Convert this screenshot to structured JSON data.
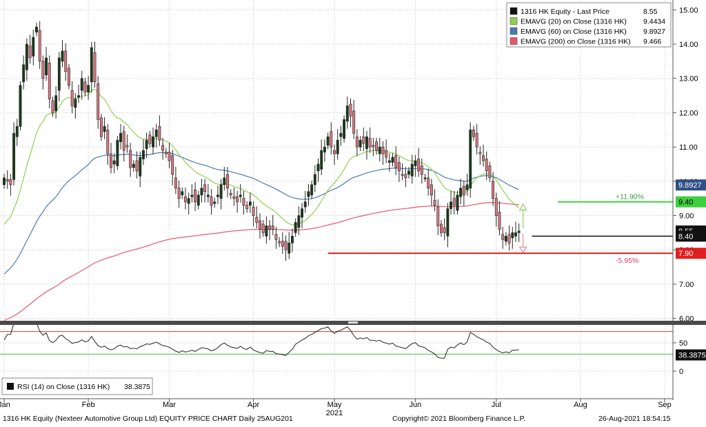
{
  "footer": {
    "left": "1316 HK Equity (Nexteer Automotive Group Ltd) EQUITY PRICE CHART  Daily 25AUG201",
    "center": "Copyright© 2021 Bloomberg Finance L.P.",
    "right": "26-Aug-2021 18:54:15"
  },
  "legend": [
    {
      "label": "1316 HK Equity - Last Price",
      "value": "8.55",
      "color": "#111111"
    },
    {
      "label": "EMAVG (20)  on Close (1316 HK)",
      "value": "9.4434",
      "color": "#8fd14f"
    },
    {
      "label": "EMAVG (60)  on Close (1316 HK)",
      "value": "9.8927",
      "color": "#4a7ab5"
    },
    {
      "label": "EMAVG (200)  on Close (1316 HK)",
      "value": "9.466",
      "color": "#e8566a"
    }
  ],
  "rsi_legend": {
    "label": "RSI (14)  on Close (1316 HK)",
    "value": "38.3875"
  },
  "price_axis": {
    "min": 5.8,
    "max": 15.0,
    "ticks": [
      "15.00",
      "14.00",
      "13.00",
      "12.00",
      "11.00",
      "10.00",
      "9.00",
      "8.00",
      "7.00",
      "6.00"
    ]
  },
  "rsi_axis": {
    "min": -20,
    "max": 80,
    "ticks": [
      "50",
      "0"
    ],
    "upper_line": 70,
    "lower_line": 30
  },
  "x_axis": {
    "year": "2021",
    "months": [
      {
        "label": "Jan",
        "day": 0
      },
      {
        "label": "Feb",
        "day": 26
      },
      {
        "label": "Mar",
        "day": 51
      },
      {
        "label": "Apr",
        "day": 77
      },
      {
        "label": "May",
        "day": 102
      },
      {
        "label": "Jun",
        "day": 127
      },
      {
        "label": "Jul",
        "day": 152
      },
      {
        "label": "Aug",
        "day": 178
      },
      {
        "label": "Sep",
        "day": 204
      }
    ],
    "day_span": 206
  },
  "annotations": {
    "last_price": {
      "value": 8.55,
      "label": "8.55"
    },
    "target_line": {
      "value": 9.4,
      "label": "9.40",
      "pct": "+11.90%",
      "day_from": 171
    },
    "support_line": {
      "value": 8.4,
      "label": "8.40",
      "day_from": 163
    },
    "stop_line": {
      "value": 7.9,
      "label": "7.90",
      "pct": "-5.95%",
      "day_from": 100
    },
    "ema60_tag": {
      "value": 9.8927,
      "label": "9.8927"
    },
    "rsi_tag": {
      "value": 38.3875,
      "label": "38.3875"
    }
  },
  "chart_data": {
    "type": "candlestick",
    "title": "",
    "xlabel": "2021",
    "ylabel": "",
    "ylim": [
      5.8,
      15.0
    ],
    "x_unit": "trading days from start of Jan 2021",
    "closes": [
      [
        0,
        10.1
      ],
      [
        1,
        10.0
      ],
      [
        2,
        9.9
      ],
      [
        3,
        11.4
      ],
      [
        4,
        11.6
      ],
      [
        5,
        12.8
      ],
      [
        6,
        13.4
      ],
      [
        7,
        14.0
      ],
      [
        8,
        13.6
      ],
      [
        9,
        14.2
      ],
      [
        10,
        14.5
      ],
      [
        11,
        13.5
      ],
      [
        12,
        13.0
      ],
      [
        13,
        13.6
      ],
      [
        14,
        12.4
      ],
      [
        15,
        12.0
      ],
      [
        16,
        12.5
      ],
      [
        17,
        13.6
      ],
      [
        18,
        13.8
      ],
      [
        19,
        13.2
      ],
      [
        20,
        12.8
      ],
      [
        21,
        12.2
      ],
      [
        22,
        12.4
      ],
      [
        23,
        12.5
      ],
      [
        24,
        13.0
      ],
      [
        25,
        12.6
      ],
      [
        26,
        12.8
      ],
      [
        27,
        13.9
      ],
      [
        28,
        12.9
      ],
      [
        29,
        11.8
      ],
      [
        30,
        11.3
      ],
      [
        31,
        11.6
      ],
      [
        32,
        10.8
      ],
      [
        33,
        10.4
      ],
      [
        34,
        10.6
      ],
      [
        35,
        11.2
      ],
      [
        36,
        11.4
      ],
      [
        37,
        10.9
      ],
      [
        38,
        11.0
      ],
      [
        39,
        10.4
      ],
      [
        40,
        10.5
      ],
      [
        41,
        10.3
      ],
      [
        42,
        10.7
      ],
      [
        43,
        10.9
      ],
      [
        44,
        11.2
      ],
      [
        45,
        11.1
      ],
      [
        46,
        11.3
      ],
      [
        47,
        11.5
      ],
      [
        48,
        11.2
      ],
      [
        49,
        10.9
      ],
      [
        50,
        10.8
      ],
      [
        51,
        10.6
      ],
      [
        52,
        10.2
      ],
      [
        53,
        9.8
      ],
      [
        54,
        9.5
      ],
      [
        55,
        9.7
      ],
      [
        56,
        9.4
      ],
      [
        57,
        9.5
      ],
      [
        58,
        9.6
      ],
      [
        59,
        9.4
      ],
      [
        60,
        9.6
      ],
      [
        61,
        9.8
      ],
      [
        62,
        9.7
      ],
      [
        63,
        9.6
      ],
      [
        64,
        9.3
      ],
      [
        65,
        9.4
      ],
      [
        66,
        9.6
      ],
      [
        67,
        9.9
      ],
      [
        68,
        10.1
      ],
      [
        69,
        9.8
      ],
      [
        70,
        9.6
      ],
      [
        71,
        9.5
      ],
      [
        72,
        9.4
      ],
      [
        73,
        9.6
      ],
      [
        74,
        9.3
      ],
      [
        75,
        9.2
      ],
      [
        76,
        9.4
      ],
      [
        77,
        9.0
      ],
      [
        78,
        8.8
      ],
      [
        79,
        8.6
      ],
      [
        80,
        8.5
      ],
      [
        81,
        8.7
      ],
      [
        82,
        8.6
      ],
      [
        83,
        8.6
      ],
      [
        84,
        8.3
      ],
      [
        85,
        8.2
      ],
      [
        86,
        8.1
      ],
      [
        87,
        8.0
      ],
      [
        88,
        8.2
      ],
      [
        89,
        8.4
      ],
      [
        90,
        8.8
      ],
      [
        91,
        9.0
      ],
      [
        92,
        9.2
      ],
      [
        93,
        9.4
      ],
      [
        94,
        9.7
      ],
      [
        95,
        9.9
      ],
      [
        96,
        10.2
      ],
      [
        97,
        10.5
      ],
      [
        98,
        10.9
      ],
      [
        99,
        11.0
      ],
      [
        100,
        11.3
      ],
      [
        101,
        11.0
      ],
      [
        102,
        10.8
      ],
      [
        103,
        11.2
      ],
      [
        104,
        11.4
      ],
      [
        105,
        11.8
      ],
      [
        106,
        12.2
      ],
      [
        107,
        11.9
      ],
      [
        108,
        11.4
      ],
      [
        109,
        11.0
      ],
      [
        110,
        11.2
      ],
      [
        111,
        11.1
      ],
      [
        112,
        11.3
      ],
      [
        113,
        11.0
      ],
      [
        114,
        11.0
      ],
      [
        115,
        10.9
      ],
      [
        116,
        11.0
      ],
      [
        117,
        10.8
      ],
      [
        118,
        10.7
      ],
      [
        119,
        10.6
      ],
      [
        120,
        10.7
      ],
      [
        121,
        10.4
      ],
      [
        122,
        10.3
      ],
      [
        123,
        10.2
      ],
      [
        124,
        10.1
      ],
      [
        125,
        10.3
      ],
      [
        126,
        10.5
      ],
      [
        127,
        10.6
      ],
      [
        128,
        10.3
      ],
      [
        129,
        10.2
      ],
      [
        130,
        10.1
      ],
      [
        131,
        9.8
      ],
      [
        132,
        9.6
      ],
      [
        133,
        9.3
      ],
      [
        134,
        8.7
      ],
      [
        135,
        8.5
      ],
      [
        136,
        8.5
      ],
      [
        137,
        9.2
      ],
      [
        138,
        9.4
      ],
      [
        139,
        9.3
      ],
      [
        140,
        9.6
      ],
      [
        141,
        9.8
      ],
      [
        142,
        9.6
      ],
      [
        143,
        9.9
      ],
      [
        144,
        11.5
      ],
      [
        145,
        11.3
      ],
      [
        146,
        11.0
      ],
      [
        147,
        10.8
      ],
      [
        148,
        10.6
      ],
      [
        149,
        10.3
      ],
      [
        150,
        10.1
      ],
      [
        151,
        9.5
      ],
      [
        152,
        9.0
      ],
      [
        153,
        8.6
      ],
      [
        154,
        8.3
      ],
      [
        155,
        8.4
      ],
      [
        156,
        8.2
      ],
      [
        157,
        8.5
      ],
      [
        158,
        8.5
      ],
      [
        159,
        8.55
      ]
    ],
    "series": [
      {
        "name": "1316 HK Equity - Last Price",
        "last": 8.55
      },
      {
        "name": "EMAVG (20)  on Close (1316 HK)",
        "last": 9.4434
      },
      {
        "name": "EMAVG (60)  on Close (1316 HK)",
        "last": 9.8927
      },
      {
        "name": "EMAVG (200)  on Close (1316 HK)",
        "last": 9.466
      },
      {
        "name": "RSI (14)  on Close (1316 HK)",
        "last": 38.3875
      }
    ],
    "grid": true,
    "legend_position": "top-right"
  }
}
